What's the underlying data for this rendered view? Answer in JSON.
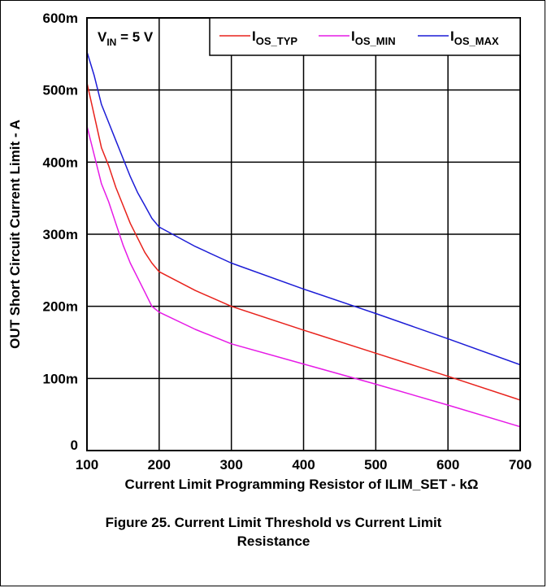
{
  "chart_data": {
    "type": "line",
    "title": "",
    "xlabel": "Current Limit Programming Resistor of ILIM_SET - kΩ",
    "ylabel": "OUT Short Circuit Current Limit - A",
    "xlim": [
      100,
      700
    ],
    "ylim": [
      0,
      0.6
    ],
    "x_ticks": [
      100,
      200,
      300,
      400,
      500,
      600,
      700
    ],
    "x_tick_labels": [
      "100",
      "200",
      "300",
      "400",
      "500",
      "600",
      "700"
    ],
    "y_ticks": [
      0,
      0.1,
      0.2,
      0.3,
      0.4,
      0.5,
      0.6
    ],
    "y_tick_labels": [
      "0",
      "100m",
      "200m",
      "300m",
      "400m",
      "500m",
      "600m"
    ],
    "grid": true,
    "legend_position": "top-right",
    "annotation": {
      "prefix": "V",
      "sub": "IN",
      "suffix": " = 5 V"
    },
    "series": [
      {
        "name": "I_OS_TYP",
        "base": "I",
        "sub": "OS_TYP",
        "color": "#e8221c",
        "x": [
          100,
          110,
          120,
          130,
          140,
          150,
          160,
          170,
          180,
          190,
          200,
          250,
          300,
          400,
          500,
          600,
          700
        ],
        "y": [
          0.51,
          0.465,
          0.42,
          0.395,
          0.365,
          0.34,
          0.315,
          0.295,
          0.275,
          0.26,
          0.248,
          0.222,
          0.2,
          0.167,
          0.135,
          0.103,
          0.07
        ]
      },
      {
        "name": "I_OS_MIN",
        "base": "I",
        "sub": "OS_MIN",
        "color": "#e61ae6",
        "x": [
          100,
          110,
          120,
          130,
          140,
          150,
          160,
          170,
          180,
          190,
          200,
          250,
          300,
          400,
          500,
          600,
          700
        ],
        "y": [
          0.45,
          0.41,
          0.37,
          0.345,
          0.315,
          0.285,
          0.26,
          0.24,
          0.22,
          0.2,
          0.192,
          0.168,
          0.148,
          0.12,
          0.092,
          0.063,
          0.033
        ]
      },
      {
        "name": "I_OS_MAX",
        "base": "I",
        "sub": "OS_MAX",
        "color": "#1c1cd6",
        "x": [
          100,
          110,
          120,
          130,
          140,
          150,
          160,
          170,
          180,
          190,
          200,
          250,
          300,
          400,
          500,
          600,
          700
        ],
        "y": [
          0.553,
          0.52,
          0.48,
          0.455,
          0.43,
          0.405,
          0.38,
          0.358,
          0.34,
          0.322,
          0.31,
          0.283,
          0.26,
          0.224,
          0.19,
          0.155,
          0.119
        ]
      }
    ]
  },
  "caption": {
    "line1": "Figure 25.  Current Limit Threshold vs Current Limit",
    "line2": "Resistance"
  }
}
